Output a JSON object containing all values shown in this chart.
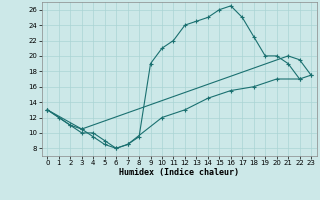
{
  "xlabel": "Humidex (Indice chaleur)",
  "bg_color": "#cce8e8",
  "line_color": "#1a7070",
  "grid_color": "#aad4d4",
  "xlim": [
    -0.5,
    23.5
  ],
  "ylim": [
    7,
    27
  ],
  "xticks": [
    0,
    1,
    2,
    3,
    4,
    5,
    6,
    7,
    8,
    9,
    10,
    11,
    12,
    13,
    14,
    15,
    16,
    17,
    18,
    19,
    20,
    21,
    22,
    23
  ],
  "yticks": [
    8,
    10,
    12,
    14,
    16,
    18,
    20,
    22,
    24,
    26
  ],
  "curve1_x": [
    0,
    1,
    2,
    3,
    4,
    5,
    6,
    7,
    8,
    9,
    10,
    11,
    12,
    13,
    14,
    15,
    16,
    17,
    18,
    19,
    20,
    21,
    22
  ],
  "curve1_y": [
    13,
    12,
    11,
    10,
    10,
    9,
    8,
    8.5,
    9.5,
    19,
    21,
    22,
    24,
    24.5,
    25,
    26,
    26.5,
    25,
    22.5,
    20,
    20,
    19,
    17
  ],
  "curve2_x": [
    0,
    3,
    21,
    22,
    23
  ],
  "curve2_y": [
    13,
    10.5,
    20,
    19.5,
    17.5
  ],
  "curve3_x": [
    0,
    2,
    3,
    4,
    5,
    6,
    7,
    10,
    12,
    14,
    16,
    18,
    20,
    22,
    23
  ],
  "curve3_y": [
    13,
    11,
    10.5,
    9.5,
    8.5,
    8,
    8.5,
    12,
    13,
    14.5,
    15.5,
    16,
    17,
    17,
    17.5
  ],
  "xlabel_fontsize": 6,
  "tick_fontsize": 5
}
